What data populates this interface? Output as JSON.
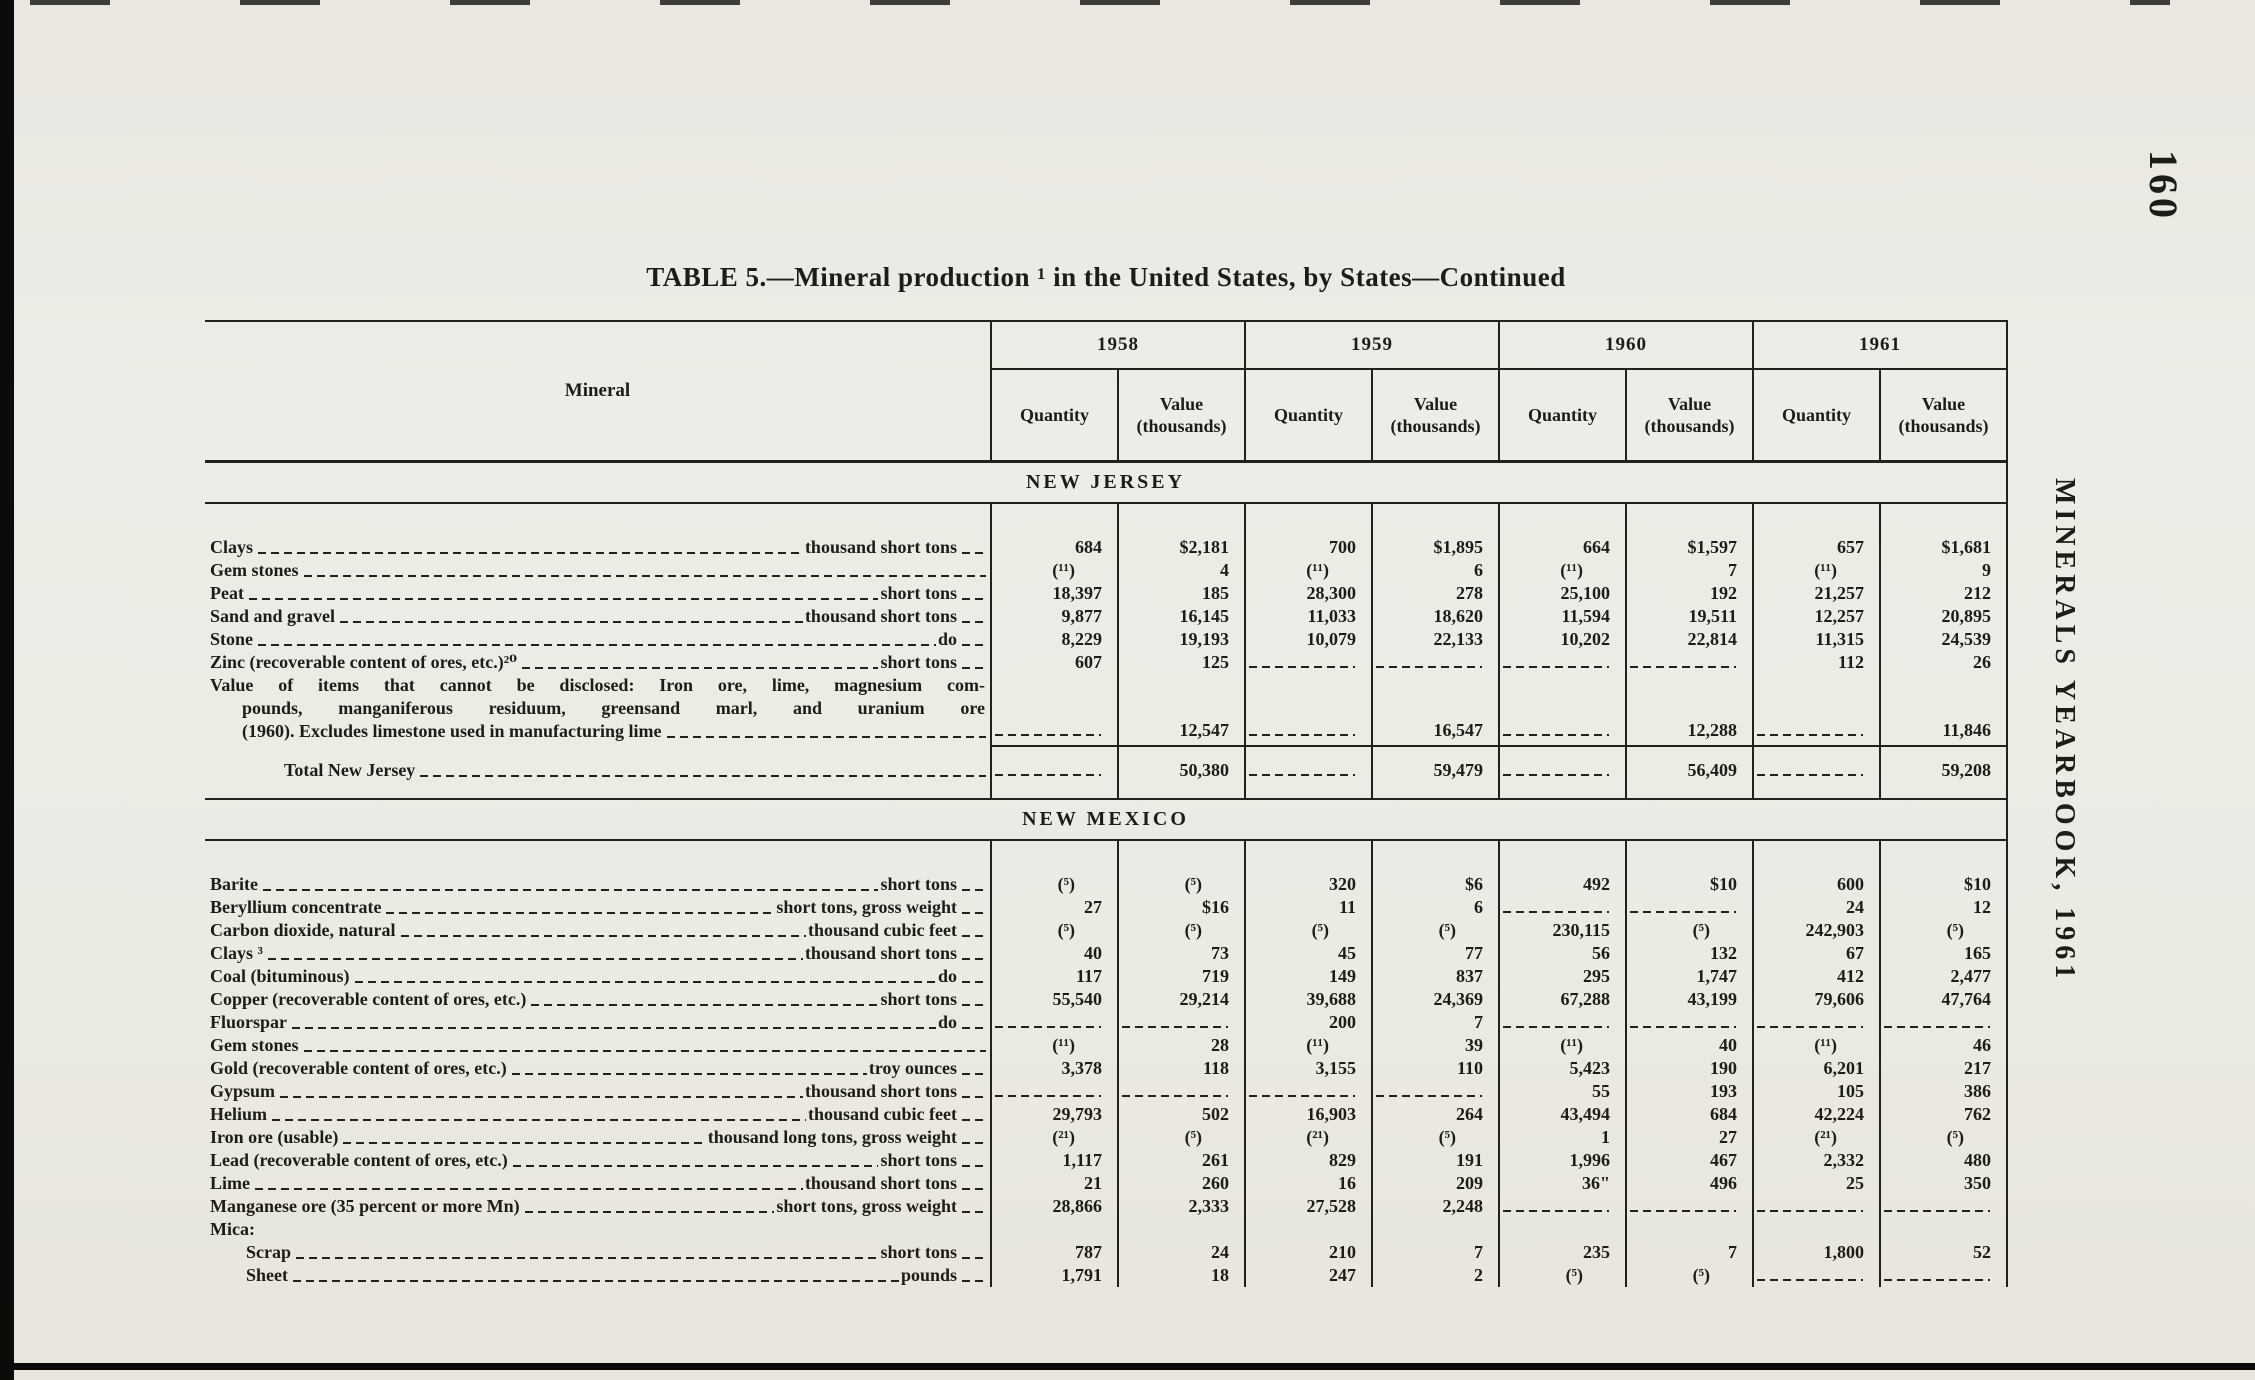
{
  "colors": {
    "paper": "#ecebe5",
    "ink": "#23211b"
  },
  "page": {
    "page_number": "160",
    "running_header": "MINERALS YEARBOOK, 1961",
    "title": "TABLE 5.—Mineral production ¹ in the United States, by States—Continued"
  },
  "table": {
    "mineral_header": "Mineral",
    "years": [
      "1958",
      "1959",
      "1960",
      "1961"
    ],
    "quantity_header": "Quantity",
    "value_header_line1": "Value",
    "value_header_line2": "(thousands)",
    "sections": [
      {
        "name": "NEW JERSEY",
        "rows": [
          {
            "label": "Clays",
            "unit": "thousand short tons",
            "cells": [
              "684",
              "$2,181",
              "700",
              "$1,895",
              "664",
              "$1,597",
              "657",
              "$1,681"
            ]
          },
          {
            "label": "Gem stones",
            "unit": "",
            "cells": [
              "(¹¹)",
              "4",
              "(¹¹)",
              "6",
              "(¹¹)",
              "7",
              "(¹¹)",
              "9"
            ]
          },
          {
            "label": "Peat",
            "unit": "short tons",
            "cells": [
              "18,397",
              "185",
              "28,300",
              "278",
              "25,100",
              "192",
              "21,257",
              "212"
            ]
          },
          {
            "label": "Sand and gravel",
            "unit": "thousand short tons",
            "cells": [
              "9,877",
              "16,145",
              "11,033",
              "18,620",
              "11,594",
              "19,511",
              "12,257",
              "20,895"
            ]
          },
          {
            "label": "Stone",
            "unit": "do",
            "cells": [
              "8,229",
              "19,193",
              "10,079",
              "22,133",
              "10,202",
              "22,814",
              "11,315",
              "24,539"
            ]
          },
          {
            "label": "Zinc (recoverable content of ores, etc.)²⁰",
            "unit": "short tons",
            "cells": [
              "607",
              "125",
              "---",
              "---",
              "---",
              "---",
              "112",
              "26"
            ]
          },
          {
            "type": "wrap",
            "label_lines": [
              "Value of items that cannot be disclosed: Iron ore, lime, magnesium com-",
              "pounds, manganiferous residuum, greensand marl, and uranium ore",
              "(1960).  Excludes limestone used in manufacturing lime"
            ],
            "cells": [
              "---",
              "12,547",
              "---",
              "16,547",
              "---",
              "12,288",
              "---",
              "11,846"
            ]
          },
          {
            "type": "total",
            "label": "Total New Jersey",
            "unit": "",
            "cells": [
              "---",
              "50,380",
              "---",
              "59,479",
              "---",
              "56,409",
              "---",
              "59,208"
            ]
          }
        ]
      },
      {
        "name": "NEW MEXICO",
        "rows": [
          {
            "label": "Barite",
            "unit": "short tons",
            "cells": [
              "(⁵)",
              "(⁵)",
              "320",
              "$6",
              "492",
              "$10",
              "600",
              "$10"
            ]
          },
          {
            "label": "Beryllium concentrate",
            "unit": "short tons, gross weight",
            "cells": [
              "27",
              "$16",
              "11",
              "6",
              "---",
              "---",
              "24",
              "12"
            ]
          },
          {
            "label": "Carbon dioxide, natural",
            "unit": "thousand cubic feet",
            "cells": [
              "(⁵)",
              "(⁵)",
              "(⁵)",
              "(⁵)",
              "230,115",
              "(⁵)",
              "242,903",
              "(⁵)"
            ]
          },
          {
            "label": "Clays ³",
            "unit": "thousand short tons",
            "cells": [
              "40",
              "73",
              "45",
              "77",
              "56",
              "132",
              "67",
              "165"
            ]
          },
          {
            "label": "Coal (bituminous)",
            "unit": "do",
            "cells": [
              "117",
              "719",
              "149",
              "837",
              "295",
              "1,747",
              "412",
              "2,477"
            ]
          },
          {
            "label": "Copper (recoverable content of ores, etc.)",
            "unit": "short tons",
            "cells": [
              "55,540",
              "29,214",
              "39,688",
              "24,369",
              "67,288",
              "43,199",
              "79,606",
              "47,764"
            ]
          },
          {
            "label": "Fluorspar",
            "unit": "do",
            "cells": [
              "---",
              "---",
              "200",
              "7",
              "---",
              "---",
              "---",
              "---"
            ]
          },
          {
            "label": "Gem stones",
            "unit": "",
            "cells": [
              "(¹¹)",
              "28",
              "(¹¹)",
              "39",
              "(¹¹)",
              "40",
              "(¹¹)",
              "46"
            ]
          },
          {
            "label": "Gold (recoverable content of ores, etc.)",
            "unit": "troy ounces",
            "cells": [
              "3,378",
              "118",
              "3,155",
              "110",
              "5,423",
              "190",
              "6,201",
              "217"
            ]
          },
          {
            "label": "Gypsum",
            "unit": "thousand short tons",
            "cells": [
              "---",
              "---",
              "---",
              "---",
              "55",
              "193",
              "105",
              "386"
            ]
          },
          {
            "label": "Helium",
            "unit": "thousand cubic feet",
            "cells": [
              "29,793",
              "502",
              "16,903",
              "264",
              "43,494",
              "684",
              "42,224",
              "762"
            ]
          },
          {
            "label": "Iron ore (usable)",
            "unit": "thousand long tons, gross weight",
            "cells": [
              "(²¹)",
              "(⁵)",
              "(²¹)",
              "(⁵)",
              "1",
              "27",
              "(²¹)",
              "(⁵)"
            ]
          },
          {
            "label": "Lead (recoverable content of ores, etc.)",
            "unit": "short tons",
            "cells": [
              "1,117",
              "261",
              "829",
              "191",
              "1,996",
              "467",
              "2,332",
              "480"
            ]
          },
          {
            "label": "Lime",
            "unit": "thousand short tons",
            "cells": [
              "21",
              "260",
              "16",
              "209",
              "36\"",
              "496",
              "25",
              "350"
            ]
          },
          {
            "label": "Manganese ore (35 percent or more Mn)",
            "unit": "short tons, gross weight",
            "cells": [
              "28,866",
              "2,333",
              "27,528",
              "2,248",
              "---",
              "---",
              "---",
              "---"
            ]
          },
          {
            "type": "subhead",
            "label": "Mica:",
            "cells": [
              "",
              "",
              "",
              "",
              "",
              "",
              "",
              ""
            ]
          },
          {
            "label": "Scrap",
            "unit": "short tons",
            "sub": true,
            "cells": [
              "787",
              "24",
              "210",
              "7",
              "235",
              "7",
              "1,800",
              "52"
            ]
          },
          {
            "label": "Sheet",
            "unit": "pounds",
            "sub": true,
            "cells": [
              "1,791",
              "18",
              "247",
              "2",
              "(⁵)",
              "(⁵)",
              "---",
              "---"
            ]
          }
        ]
      }
    ]
  }
}
